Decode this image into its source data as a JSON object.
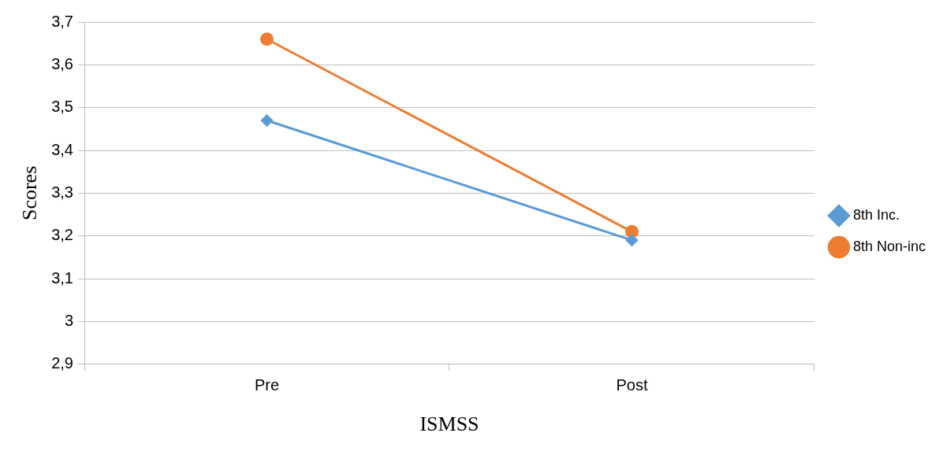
{
  "chart_data": {
    "type": "line",
    "xlabel": "ISMSS",
    "ylabel": "Scores",
    "categories": [
      "Pre",
      "Post"
    ],
    "series": [
      {
        "name": "8th Inc.",
        "color": "#5b9bd5",
        "values": [
          3.47,
          3.19
        ],
        "marker": "diamond"
      },
      {
        "name": "8th Non-inc",
        "color": "#ed7d31",
        "values": [
          3.66,
          3.21
        ],
        "marker": "circle"
      }
    ],
    "ylim": [
      2.9,
      3.7
    ],
    "yticks": [
      {
        "value": 2.9,
        "label": "2,9"
      },
      3,
      {
        "value": 3.1,
        "label": "3,1"
      },
      {
        "value": 3.2,
        "label": "3,2"
      },
      {
        "value": 3.3,
        "label": "3,3"
      },
      {
        "value": 3.4,
        "label": "3,4"
      },
      {
        "value": 3.5,
        "label": "3,5"
      },
      {
        "value": 3.6,
        "label": "3,6"
      },
      {
        "value": 3.7,
        "label": "3,7"
      }
    ],
    "grid": "y",
    "legend": "right",
    "line_style": "solid"
  }
}
